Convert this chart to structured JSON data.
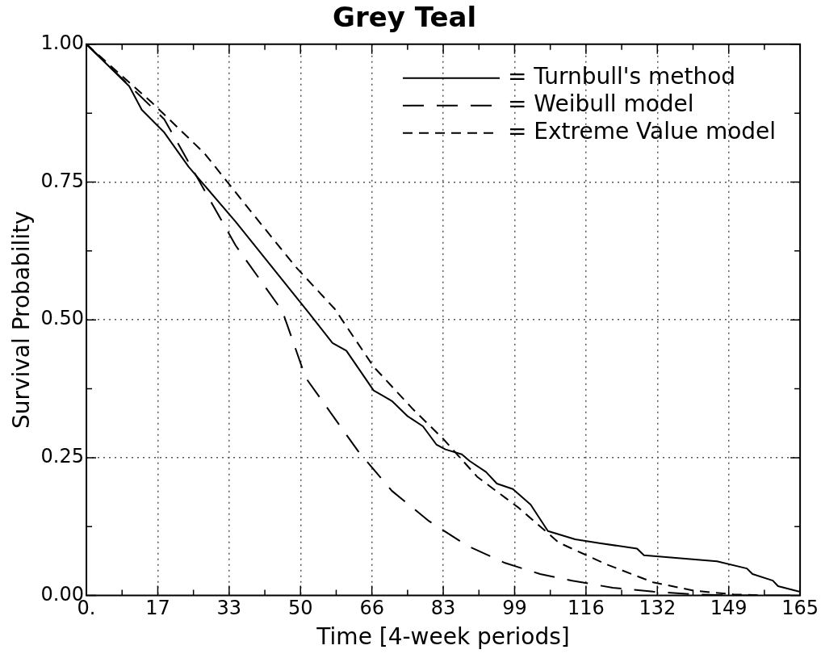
{
  "chart_data": {
    "type": "line",
    "title": "Grey Teal",
    "xlabel": "Time [4-week periods]",
    "ylabel": "Survival Probability",
    "xlim": [
      0,
      165
    ],
    "ylim": [
      0,
      1
    ],
    "xticks": [
      {
        "value": 0,
        "label": "0."
      },
      {
        "value": 8.25,
        "label": null
      },
      {
        "value": 16.5,
        "label": "17"
      },
      {
        "value": 24.75,
        "label": null
      },
      33,
      {
        "value": 41.25,
        "label": null
      },
      {
        "value": 49.5,
        "label": "50"
      },
      {
        "value": 57.75,
        "label": null
      },
      66,
      {
        "value": 74.25,
        "label": null
      },
      {
        "value": 82.5,
        "label": "83"
      },
      {
        "value": 90.75,
        "label": null
      },
      99,
      {
        "value": 107.25,
        "label": null
      },
      {
        "value": 115.5,
        "label": "116"
      },
      {
        "value": 123.75,
        "label": null
      },
      132,
      {
        "value": 140.25,
        "label": null
      },
      {
        "value": 148.5,
        "label": "149"
      },
      {
        "value": 156.75,
        "label": null
      },
      165
    ],
    "yticks": [
      {
        "value": 0,
        "label": "0.00"
      },
      {
        "value": 0.125,
        "label": null
      },
      {
        "value": 0.25,
        "label": "0.25"
      },
      {
        "value": 0.375,
        "label": null
      },
      {
        "value": 0.5,
        "label": "0.50"
      },
      {
        "value": 0.625,
        "label": null
      },
      {
        "value": 0.75,
        "label": "0.75"
      },
      {
        "value": 0.875,
        "label": null
      },
      {
        "value": 1,
        "label": "1.00"
      }
    ],
    "grid": true,
    "legend": "top right",
    "marker": "none",
    "series": [
      {
        "name": "= Turnbull's method",
        "color": "#000000",
        "line_style": "solid",
        "x": [
          0,
          9.9,
          12.8,
          18,
          23.6,
          34.5,
          51.4,
          56.9,
          60.1,
          66.4,
          68.2,
          70.6,
          74.3,
          77.8,
          80.9,
          83,
          86.8,
          88.6,
          92.4,
          94.9,
          98.6,
          102.7,
          106.7,
          113,
          118.6,
          127.3,
          128.9,
          145.8,
          152.7,
          154,
          158.7,
          159.9,
          164.8
        ],
        "values": [
          1,
          0.924,
          0.881,
          0.84,
          0.778,
          0.678,
          0.513,
          0.458,
          0.444,
          0.372,
          0.364,
          0.353,
          0.325,
          0.307,
          0.274,
          0.265,
          0.256,
          0.244,
          0.224,
          0.203,
          0.193,
          0.165,
          0.117,
          0.102,
          0.095,
          0.085,
          0.073,
          0.062,
          0.049,
          0.039,
          0.027,
          0.017,
          0.007
        ]
      },
      {
        "name": "= Weibull model",
        "color": "#000000",
        "line_style": "dashed",
        "x": [
          0,
          18,
          27.3,
          34.5,
          45.3,
          50.7,
          62.8,
          70.6,
          79.2,
          88.1,
          96.8,
          104.9,
          112.3,
          121.7,
          131,
          140.3,
          150,
          165
        ],
        "values": [
          1,
          0.864,
          0.735,
          0.635,
          0.516,
          0.395,
          0.262,
          0.19,
          0.135,
          0.09,
          0.059,
          0.039,
          0.027,
          0.014,
          0.007,
          0.002,
          0,
          0
        ]
      },
      {
        "name": "= Extreme Value model",
        "color": "#000000",
        "line_style": "dashed",
        "x": [
          0,
          15.3,
          27.3,
          38.1,
          48.4,
          57.4,
          66.4,
          75.5,
          82.5,
          90.4,
          99.8,
          109.2,
          120.4,
          131,
          140.3,
          149.6,
          158
        ],
        "values": [
          1,
          0.893,
          0.802,
          0.696,
          0.596,
          0.52,
          0.415,
          0.338,
          0.284,
          0.215,
          0.16,
          0.096,
          0.056,
          0.024,
          0.009,
          0.002,
          0
        ]
      }
    ]
  }
}
